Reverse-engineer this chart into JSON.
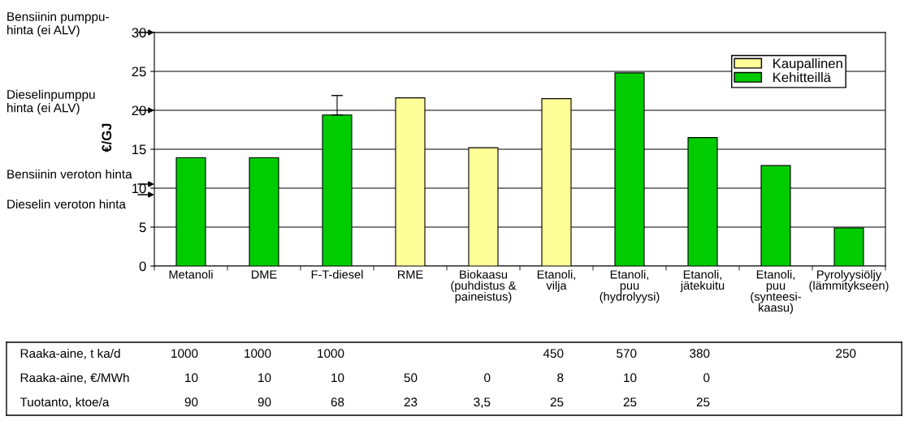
{
  "chart_data": [
    {
      "type": "bar",
      "ylabel": "€/GJ",
      "categories": [
        "Metanoli",
        "DME",
        "F-T-diesel",
        "RME",
        "Biokaasu\n(puhdistus &\npaineistus)",
        "Etanoli,\nvilja",
        "Etanoli,\npuu\n(hydrolyysi)",
        "Etanoli,\njätekuitu",
        "Etanoli,\npuu\n(synteesi-\nkaasu)",
        "Pyrolyysiöljy\n(lämmitykseen)"
      ],
      "series": [
        {
          "name": "Kaupallinen",
          "color": "#ffff99",
          "values": [
            null,
            null,
            null,
            21.6,
            15.2,
            21.5,
            null,
            null,
            null,
            null
          ]
        },
        {
          "name": "Kehitteillä",
          "color": "#00cc00",
          "values": [
            13.9,
            13.9,
            19.4,
            null,
            null,
            null,
            24.8,
            16.5,
            12.9,
            4.9
          ],
          "errors": [
            null,
            null,
            [
              19.4,
              21.9
            ],
            null,
            null,
            null,
            null,
            null,
            null,
            null
          ]
        }
      ],
      "ylim": [
        0,
        30
      ],
      "yticks": [
        0,
        5,
        10,
        15,
        20,
        25,
        30
      ],
      "grid": "y",
      "legend": "top right",
      "annotations": [
        "Bensiinin pumppu-\nhinta (ei ALV)",
        "Dieselinpumppu\nhinta (ei ALV)",
        "Bensiinin veroton hinta",
        "Dieselin veroton hinta"
      ]
    },
    {
      "type": "other",
      "categories": [
        null,
        null,
        null,
        null,
        null,
        null,
        null,
        null,
        null,
        null
      ],
      "y_categories": [
        "Raaka-aine, t ka/d",
        "Raaka-aine, €/MWh",
        "Tuotanto, ktoe/a"
      ],
      "cell_labels": [
        [
          "1000",
          "1000",
          "1000",
          null,
          null,
          "450",
          "570",
          "380",
          null,
          "250"
        ],
        [
          "10",
          "10",
          "10",
          "50",
          "0",
          "8",
          "10",
          "0",
          null,
          null
        ],
        [
          "90",
          "90",
          "68",
          "23",
          "3,5",
          "25",
          "25",
          "25",
          null,
          null
        ]
      ]
    }
  ]
}
